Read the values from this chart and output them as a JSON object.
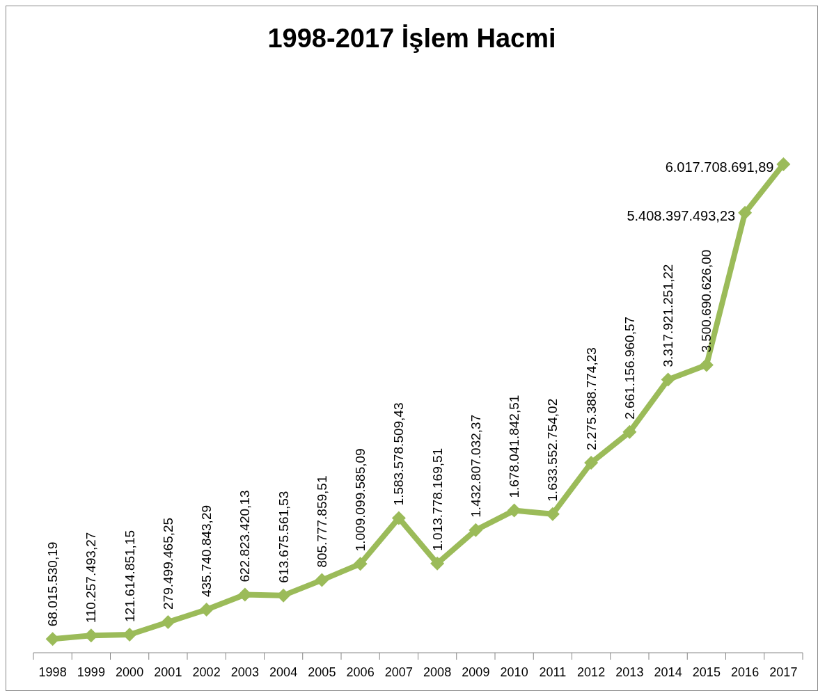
{
  "chart_data": {
    "type": "line",
    "title": "1998-2017 İşlem Hacmi",
    "categories": [
      "1998",
      "1999",
      "2000",
      "2001",
      "2002",
      "2003",
      "2004",
      "2005",
      "2006",
      "2007",
      "2008",
      "2009",
      "2010",
      "2011",
      "2012",
      "2013",
      "2014",
      "2015",
      "2016",
      "2017"
    ],
    "series": [
      {
        "color": "#9bbb59",
        "values": [
          68015530.19,
          110257493.27,
          121614851.15,
          279499465.25,
          435740843.29,
          622823420.13,
          613675561.53,
          805777859.51,
          1009099585.09,
          1583578509.43,
          1013778169.51,
          1432807032.37,
          1678041842.51,
          1633552754.02,
          2275388774.23,
          2661156960.57,
          3317921251.22,
          3500690626.0,
          5408397493.23,
          6017708691.89
        ],
        "value_labels": [
          "68.015.530,19",
          "110.257.493,27",
          "121.614.851,15",
          "279.499.465,25",
          "435.740.843,29",
          "622.823.420,13",
          "613.675.561,53",
          "805.777.859,51",
          "1.009.099.585,09",
          "1.583.578.509,43",
          "1.013.778.169,51",
          "1.432.807.032,37",
          "1.678.041.842,51",
          "1.633.552.754,02",
          "2.275.388.774,23",
          "2.661.156.960,57",
          "3.317.921.251,22",
          "3.500.690.626,00",
          "5.408.397.493,23",
          "6.017.708.691,89"
        ]
      }
    ],
    "marker": "diamond",
    "line_style": "solid"
  }
}
